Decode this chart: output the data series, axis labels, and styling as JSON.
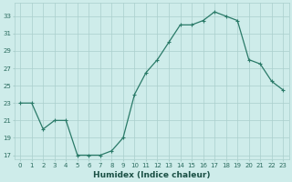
{
  "x": [
    0,
    1,
    2,
    3,
    4,
    5,
    6,
    7,
    8,
    9,
    10,
    11,
    12,
    13,
    14,
    15,
    16,
    17,
    18,
    19,
    20,
    21,
    22,
    23
  ],
  "y": [
    23,
    23,
    20,
    21,
    21,
    17,
    17,
    17,
    17.5,
    19,
    24,
    26.5,
    28,
    30,
    32,
    32,
    32.5,
    33.5,
    33,
    32.5,
    28,
    27.5,
    25.5,
    24.5
  ],
  "xlabel": "Humidex (Indice chaleur)",
  "ylim": [
    16.5,
    34.5
  ],
  "yticks": [
    17,
    19,
    21,
    23,
    25,
    27,
    29,
    31,
    33
  ],
  "xlim": [
    -0.5,
    23.5
  ],
  "line_color": "#2a7a68",
  "marker": "+",
  "marker_size": 3.5,
  "marker_linewidth": 0.8,
  "bg_color": "#ceecea",
  "grid_color": "#aacfcc",
  "tick_label_color": "#2a6b5e",
  "xlabel_color": "#1a5045",
  "line_width": 0.9,
  "xlabel_fontsize": 6.5,
  "tick_fontsize": 5.0
}
